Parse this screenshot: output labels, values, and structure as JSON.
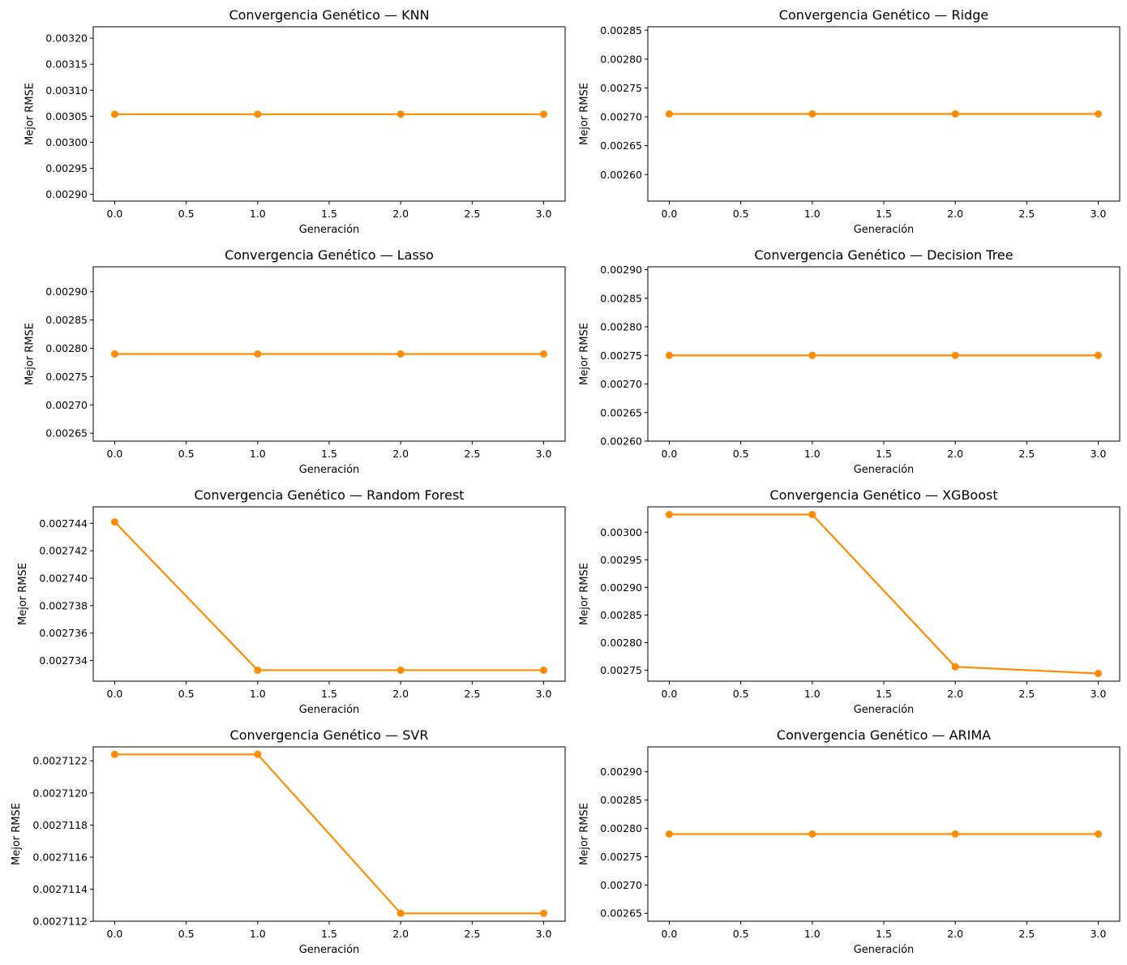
{
  "colors": {
    "line": "#ff8c00",
    "axes": "#000000",
    "background": "#ffffff"
  },
  "chart_data": [
    {
      "type": "line",
      "title": "Convergencia Genético — KNN",
      "xlabel": "Generación",
      "ylabel": "Mejor RMSE",
      "x": [
        0,
        1,
        2,
        3
      ],
      "values": [
        0.003054,
        0.003054,
        0.003054,
        0.003054
      ],
      "xlim": [
        -0.15,
        3.15
      ],
      "ylim": [
        0.002887,
        0.003222
      ],
      "xticks": [
        "0.0",
        "0.5",
        "1.0",
        "1.5",
        "2.0",
        "2.5",
        "3.0"
      ],
      "yticks": [
        "0.00290",
        "0.00295",
        "0.00300",
        "0.00305",
        "0.00310",
        "0.00315",
        "0.00320"
      ],
      "grid": false
    },
    {
      "type": "line",
      "title": "Convergencia Genético — Ridge",
      "xlabel": "Generación",
      "ylabel": "Mejor RMSE",
      "x": [
        0,
        1,
        2,
        3
      ],
      "values": [
        0.002705,
        0.002705,
        0.002705,
        0.002705
      ],
      "xlim": [
        -0.15,
        3.15
      ],
      "ylim": [
        0.002554,
        0.002856
      ],
      "xticks": [
        "0.0",
        "0.5",
        "1.0",
        "1.5",
        "2.0",
        "2.5",
        "3.0"
      ],
      "yticks": [
        "0.00260",
        "0.00265",
        "0.00270",
        "0.00275",
        "0.00280",
        "0.00285"
      ],
      "grid": false
    },
    {
      "type": "line",
      "title": "Convergencia Genético — Lasso",
      "xlabel": "Generación",
      "ylabel": "Mejor RMSE",
      "x": [
        0,
        1,
        2,
        3
      ],
      "values": [
        0.00279,
        0.00279,
        0.00279,
        0.00279
      ],
      "xlim": [
        -0.15,
        3.15
      ],
      "ylim": [
        0.002636,
        0.002944
      ],
      "xticks": [
        "0.0",
        "0.5",
        "1.0",
        "1.5",
        "2.0",
        "2.5",
        "3.0"
      ],
      "yticks": [
        "0.00265",
        "0.00270",
        "0.00275",
        "0.00280",
        "0.00285",
        "0.00290"
      ],
      "grid": false
    },
    {
      "type": "line",
      "title": "Convergencia Genético — Decision Tree",
      "xlabel": "Generación",
      "ylabel": "Mejor RMSE",
      "x": [
        0,
        1,
        2,
        3
      ],
      "values": [
        0.00275,
        0.00275,
        0.00275,
        0.00275
      ],
      "xlim": [
        -0.15,
        3.15
      ],
      "ylim": [
        0.0026,
        0.002905
      ],
      "xticks": [
        "0.0",
        "0.5",
        "1.0",
        "1.5",
        "2.0",
        "2.5",
        "3.0"
      ],
      "yticks": [
        "0.00260",
        "0.00265",
        "0.00270",
        "0.00275",
        "0.00280",
        "0.00285",
        "0.00290"
      ],
      "grid": false
    },
    {
      "type": "line",
      "title": "Convergencia Genético — Random Forest",
      "xlabel": "Generación",
      "ylabel": "Mejor RMSE",
      "x": [
        0,
        1,
        2,
        3
      ],
      "values": [
        0.0027441,
        0.0027333,
        0.0027333,
        0.0027333
      ],
      "xlim": [
        -0.15,
        3.15
      ],
      "ylim": [
        0.0027325,
        0.0027452
      ],
      "xticks": [
        "0.0",
        "0.5",
        "1.0",
        "1.5",
        "2.0",
        "2.5",
        "3.0"
      ],
      "yticks": [
        "0.002734",
        "0.002736",
        "0.002738",
        "0.002740",
        "0.002742",
        "0.002744"
      ],
      "grid": false
    },
    {
      "type": "line",
      "title": "Convergencia Genético — XGBoost",
      "xlabel": "Generación",
      "ylabel": "Mejor RMSE",
      "x": [
        0,
        1,
        2,
        3
      ],
      "values": [
        0.003032,
        0.003032,
        0.002756,
        0.002744
      ],
      "xlim": [
        -0.15,
        3.15
      ],
      "ylim": [
        0.00273,
        0.003046
      ],
      "xticks": [
        "0.0",
        "0.5",
        "1.0",
        "1.5",
        "2.0",
        "2.5",
        "3.0"
      ],
      "yticks": [
        "0.00275",
        "0.00280",
        "0.00285",
        "0.00290",
        "0.00295",
        "0.00300"
      ],
      "grid": false
    },
    {
      "type": "line",
      "title": "Convergencia Genético — SVR",
      "xlabel": "Generación",
      "ylabel": "Mejor RMSE",
      "x": [
        0,
        1,
        2,
        3
      ],
      "values": [
        0.00271224,
        0.00271224,
        0.00271125,
        0.00271125
      ],
      "xlim": [
        -0.15,
        3.15
      ],
      "ylim": [
        0.002711201,
        0.002712287
      ],
      "xticks": [
        "0.0",
        "0.5",
        "1.0",
        "1.5",
        "2.0",
        "2.5",
        "3.0"
      ],
      "yticks": [
        "0.0027112",
        "0.0027114",
        "0.0027116",
        "0.0027118",
        "0.0027120",
        "0.0027122"
      ],
      "grid": false
    },
    {
      "type": "line",
      "title": "Convergencia Genético — ARIMA",
      "xlabel": "Generación",
      "ylabel": "Mejor RMSE",
      "x": [
        0,
        1,
        2,
        3
      ],
      "values": [
        0.00279,
        0.00279,
        0.00279,
        0.00279
      ],
      "xlim": [
        -0.15,
        3.15
      ],
      "ylim": [
        0.002636,
        0.002944
      ],
      "xticks": [
        "0.0",
        "0.5",
        "1.0",
        "1.5",
        "2.0",
        "2.5",
        "3.0"
      ],
      "yticks": [
        "0.00265",
        "0.00270",
        "0.00275",
        "0.00280",
        "0.00285",
        "0.00290"
      ],
      "grid": false
    }
  ]
}
